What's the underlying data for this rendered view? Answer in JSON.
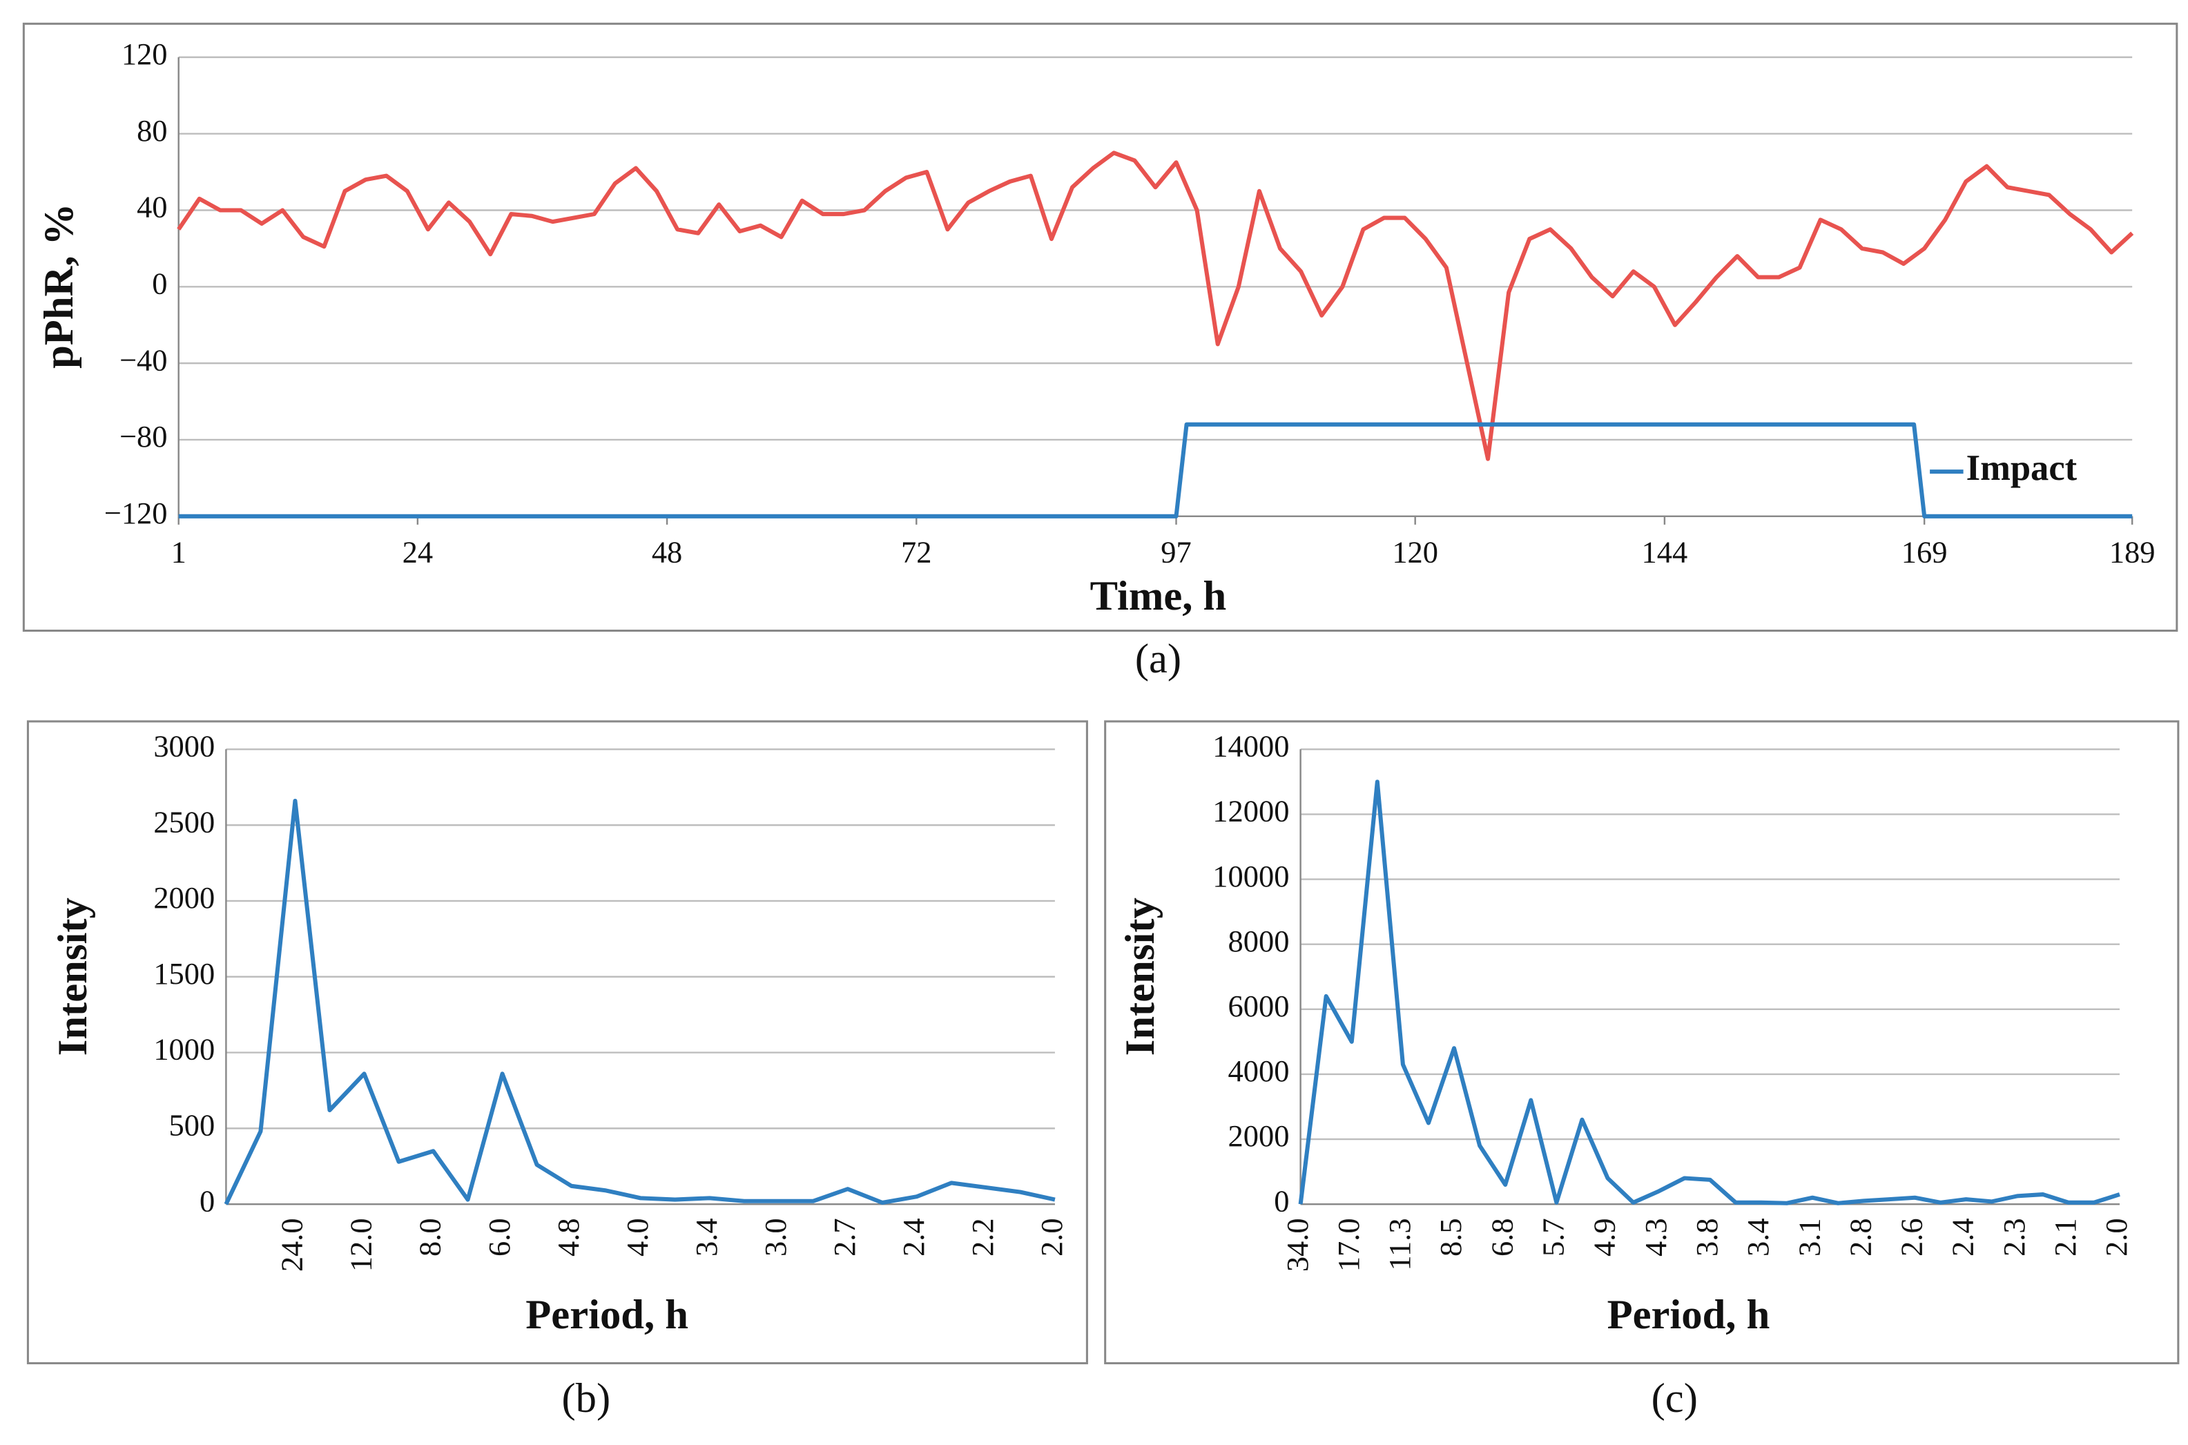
{
  "chart_data": [
    {
      "type": "line",
      "caption": "(a)",
      "y_label": "pPhR, %",
      "x_label": "Time, h",
      "xlim": [
        1,
        189
      ],
      "xticks": [
        1,
        24,
        48,
        72,
        97,
        120,
        144,
        169,
        189
      ],
      "ylim": [
        -120,
        120
      ],
      "yticks": [
        {
          "value": -120,
          "label": "−120"
        },
        {
          "value": -80,
          "label": "−80"
        },
        {
          "value": -40,
          "label": "−40"
        },
        0,
        40,
        80,
        120
      ],
      "grid": true,
      "legend": "lower right",
      "series": [
        {
          "color": "#e8534f",
          "x": [
            1,
            3,
            5,
            7,
            9,
            11,
            13,
            15,
            17,
            19,
            21,
            23,
            25,
            27,
            29,
            31,
            33,
            35,
            37,
            39,
            41,
            43,
            45,
            47,
            49,
            51,
            53,
            55,
            57,
            59,
            61,
            63,
            65,
            67,
            69,
            71,
            73,
            75,
            77,
            79,
            81,
            83,
            85,
            87,
            89,
            91,
            93,
            95,
            97,
            99,
            101,
            103,
            105,
            107,
            109,
            111,
            113,
            115,
            117,
            119,
            121,
            123,
            125,
            127,
            129,
            131,
            133,
            135,
            137,
            139,
            141,
            143,
            145,
            147,
            149,
            151,
            153,
            155,
            157,
            159,
            161,
            163,
            165,
            167,
            169,
            171,
            173,
            175,
            177,
            179,
            181,
            183,
            185,
            187,
            189
          ],
          "values": [
            30,
            46,
            40,
            40,
            33,
            40,
            26,
            21,
            50,
            56,
            58,
            50,
            30,
            44,
            34,
            17,
            38,
            37,
            34,
            36,
            38,
            54,
            62,
            50,
            30,
            28,
            43,
            29,
            32,
            26,
            45,
            38,
            38,
            40,
            50,
            57,
            60,
            30,
            44,
            50,
            55,
            58,
            25,
            52,
            62,
            70,
            66,
            52,
            65,
            40,
            -30,
            0,
            50,
            20,
            8,
            -15,
            0,
            30,
            36,
            36,
            25,
            10,
            -40,
            -90,
            -3,
            25,
            30,
            20,
            5,
            -5,
            8,
            0,
            -20,
            -8,
            5,
            16,
            5,
            5,
            10,
            35,
            30,
            20,
            18,
            12,
            20,
            35,
            55,
            63,
            52,
            50,
            48,
            38,
            30,
            18,
            28
          ]
        },
        {
          "name": "Impact",
          "color": "#2f7fc1",
          "x": [
            1,
            97,
            98,
            168,
            169,
            189
          ],
          "values": [
            -120,
            -120,
            -72,
            -72,
            -120,
            -120
          ]
        }
      ]
    },
    {
      "type": "line",
      "caption": "(b)",
      "y_label": "Intensity",
      "x_label": "Period, h",
      "categories": [
        null,
        null,
        "24.0",
        null,
        "12.0",
        null,
        "8.0",
        null,
        "6.0",
        null,
        "4.8",
        null,
        "4.0",
        null,
        "3.4",
        null,
        "3.0",
        null,
        "2.7",
        null,
        "2.4",
        null,
        "2.2",
        null,
        "2.0"
      ],
      "ylim": [
        0,
        3000
      ],
      "yticks": [
        0,
        500,
        1000,
        1500,
        2000,
        2500,
        3000
      ],
      "grid": true,
      "series": [
        {
          "color": "#2f7fc1",
          "values": [
            0,
            480,
            2660,
            620,
            860,
            280,
            350,
            30,
            860,
            260,
            120,
            90,
            40,
            30,
            40,
            20,
            20,
            20,
            100,
            10,
            50,
            140,
            110,
            80,
            30
          ]
        }
      ]
    },
    {
      "type": "line",
      "caption": "(c)",
      "y_label": "Intensity",
      "x_label": "Period, h",
      "categories": [
        "34.0",
        null,
        "17.0",
        null,
        "11.3",
        null,
        "8.5",
        null,
        "6.8",
        null,
        "5.7",
        null,
        "4.9",
        null,
        "4.3",
        null,
        "3.8",
        null,
        "3.4",
        null,
        "3.1",
        null,
        "2.8",
        null,
        "2.6",
        null,
        "2.4",
        null,
        "2.3",
        null,
        "2.1",
        null,
        "2.0"
      ],
      "ylim": [
        0,
        14000
      ],
      "yticks": [
        0,
        2000,
        4000,
        6000,
        8000,
        10000,
        12000,
        14000
      ],
      "grid": true,
      "series": [
        {
          "color": "#2f7fc1",
          "values": [
            0,
            6400,
            5000,
            13000,
            4300,
            2500,
            4800,
            1800,
            600,
            3200,
            50,
            2600,
            800,
            50,
            400,
            800,
            750,
            50,
            50,
            30,
            200,
            30,
            100,
            150,
            200,
            50,
            150,
            80,
            250,
            300,
            50,
            50,
            300
          ]
        }
      ]
    }
  ]
}
